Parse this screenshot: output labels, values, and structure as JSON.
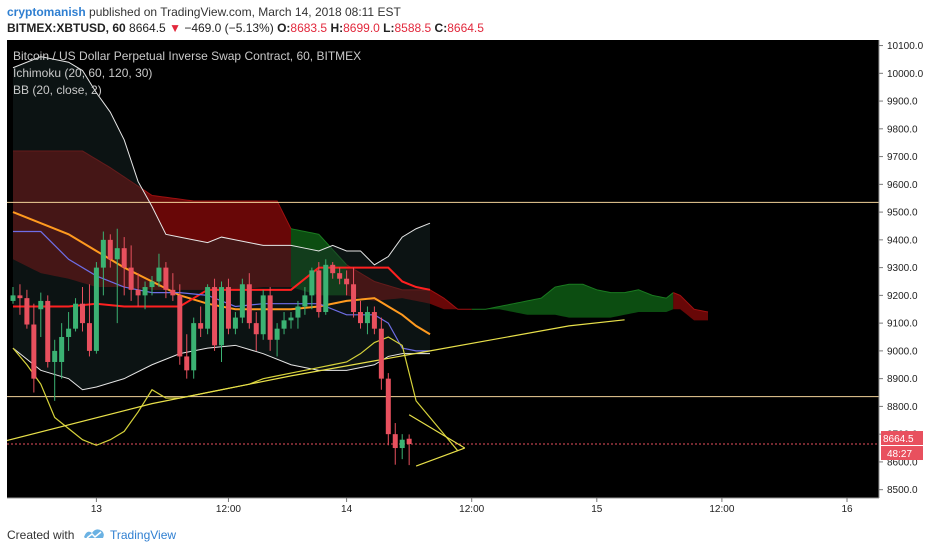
{
  "header": {
    "author": "cryptomanish",
    "published_text": "published on TradingView.com, March 14, 2018 08:11 EST",
    "symbol": "BITMEX:XBTUSD, 60",
    "last": "8664.5",
    "change_arrow": "▼",
    "change": "−469.0 (−5.13%)",
    "o_label": "O:",
    "o": "8683.5",
    "h_label": "H:",
    "h": "8699.0",
    "l_label": "L:",
    "l": "8588.5",
    "c_label": "C:",
    "c": "8664.5"
  },
  "legend": {
    "title": "Bitcoin / US Dollar Perpetual Inverse Swap Contract, 60, BITMEX",
    "ichimoku": "Ichimoku (20, 60, 120, 30)",
    "bb": "BB (20, close, 2)"
  },
  "price_tag": {
    "price": "8664.5",
    "countdown": "48:27"
  },
  "footer": {
    "created_with": "Created with",
    "brand": "TradingView"
  },
  "colors": {
    "background": "#000000",
    "up": "#3bb273",
    "down": "#e8505e",
    "axis_bg": "#ffffff",
    "tenkan": "#ff2020",
    "kijun_bb_basis": "#ff9a1f",
    "bb_bands": "#e6e6e6",
    "chikou": "#d6d23a",
    "trendline": "#e8e04a",
    "horizontal": "#f2d29a",
    "cloud_bear": "#8b0a0a",
    "cloud_bull": "#0e5a14",
    "base_line": "#6e6ee6"
  },
  "chart_data": {
    "type": "candlestick",
    "title": "Bitcoin / US Dollar Perpetual Inverse Swap Contract, 60, BITMEX",
    "y_ticks": [
      "8500.0",
      "8600.0",
      "8700.0",
      "8800.0",
      "8900.0",
      "9000.0",
      "9100.0",
      "9200.0",
      "9300.0",
      "9400.0",
      "9500.0",
      "9600.0",
      "9700.0",
      "9800.0",
      "9900.0",
      "10000.0",
      "10100.0"
    ],
    "ylim": [
      8470,
      10120
    ],
    "x_ticks": [
      {
        "label": "13",
        "i": 12
      },
      {
        "label": "12:00",
        "i": 31
      },
      {
        "label": "14",
        "i": 48
      },
      {
        "label": "12:00",
        "i": 66
      },
      {
        "label": "15",
        "i": 84
      },
      {
        "label": "12:00",
        "i": 102
      },
      {
        "label": "16",
        "i": 120
      }
    ],
    "xlim": [
      0,
      125
    ],
    "candles": [
      [
        9180,
        9230,
        9170,
        9200
      ],
      [
        9200,
        9240,
        9130,
        9190
      ],
      [
        9190,
        9220,
        9080,
        9095
      ],
      [
        9095,
        9170,
        8850,
        8900
      ],
      [
        9150,
        9210,
        9050,
        9180
      ],
      [
        9180,
        9200,
        8940,
        8960
      ],
      [
        8960,
        9040,
        8820,
        9000
      ],
      [
        8960,
        9100,
        8900,
        9050
      ],
      [
        9050,
        9140,
        9000,
        9080
      ],
      [
        9080,
        9190,
        9070,
        9170
      ],
      [
        9170,
        9230,
        9070,
        9100
      ],
      [
        9100,
        9240,
        8980,
        9000
      ],
      [
        9000,
        9320,
        8990,
        9300
      ],
      [
        9300,
        9430,
        9200,
        9400
      ],
      [
        9400,
        9420,
        9300,
        9330
      ],
      [
        9330,
        9440,
        9100,
        9370
      ],
      [
        9370,
        9410,
        9200,
        9300
      ],
      [
        9300,
        9380,
        9180,
        9220
      ],
      [
        9220,
        9280,
        9160,
        9200
      ],
      [
        9200,
        9250,
        9150,
        9230
      ],
      [
        9230,
        9270,
        9200,
        9250
      ],
      [
        9250,
        9350,
        9230,
        9300
      ],
      [
        9300,
        9320,
        9190,
        9220
      ],
      [
        9220,
        9280,
        9180,
        9200
      ],
      [
        9200,
        9240,
        8950,
        8980
      ],
      [
        8980,
        9060,
        8900,
        8930
      ],
      [
        8930,
        9120,
        8900,
        9100
      ],
      [
        9100,
        9160,
        9050,
        9080
      ],
      [
        9080,
        9240,
        9060,
        9230
      ],
      [
        9230,
        9260,
        9000,
        9020
      ],
      [
        9020,
        9250,
        8960,
        9230
      ],
      [
        9230,
        9260,
        9060,
        9080
      ],
      [
        9080,
        9140,
        9060,
        9120
      ],
      [
        9120,
        9260,
        9100,
        9240
      ],
      [
        9240,
        9280,
        9080,
        9100
      ],
      [
        9100,
        9140,
        9000,
        9060
      ],
      [
        9060,
        9220,
        9040,
        9200
      ],
      [
        9200,
        9230,
        9000,
        9040
      ],
      [
        9040,
        9100,
        8980,
        9080
      ],
      [
        9080,
        9140,
        9060,
        9110
      ],
      [
        9110,
        9140,
        9080,
        9120
      ],
      [
        9120,
        9180,
        9080,
        9160
      ],
      [
        9160,
        9230,
        9130,
        9200
      ],
      [
        9200,
        9300,
        9150,
        9290
      ],
      [
        9290,
        9320,
        9120,
        9140
      ],
      [
        9140,
        9330,
        9130,
        9310
      ],
      [
        9310,
        9320,
        9260,
        9280
      ],
      [
        9280,
        9300,
        9240,
        9260
      ],
      [
        9260,
        9290,
        9200,
        9240
      ],
      [
        9240,
        9300,
        9120,
        9140
      ],
      [
        9140,
        9180,
        9080,
        9100
      ],
      [
        9100,
        9160,
        9060,
        9140
      ],
      [
        9140,
        9160,
        9060,
        9080
      ],
      [
        9080,
        9120,
        8860,
        8900
      ],
      [
        8900,
        8920,
        8660,
        8700
      ],
      [
        8700,
        8740,
        8590,
        8650
      ],
      [
        8650,
        8700,
        8610,
        8680
      ],
      [
        8683.5,
        8699,
        8588.5,
        8664.5
      ]
    ],
    "candle_x": [
      0,
      1,
      2,
      3,
      4,
      5,
      6,
      7,
      8,
      9,
      10,
      11,
      12,
      13,
      14,
      15,
      16,
      17,
      18,
      19,
      20,
      21,
      22,
      23,
      24,
      25,
      26,
      27,
      28,
      29,
      30,
      31,
      32,
      33,
      34,
      35,
      36,
      37,
      38,
      39,
      40,
      41,
      42,
      43,
      44,
      45,
      46,
      47,
      48,
      49,
      50,
      51,
      52,
      53,
      54,
      55,
      56,
      57
    ],
    "horizontal_levels": [
      9535,
      8835
    ],
    "last_price_level": 8664.5,
    "series": [
      {
        "name": "bb_upper",
        "points": [
          [
            0,
            10020
          ],
          [
            4,
            10060
          ],
          [
            8,
            10040
          ],
          [
            10,
            10010
          ],
          [
            12,
            9930
          ],
          [
            14,
            9860
          ],
          [
            16,
            9760
          ],
          [
            18,
            9610
          ],
          [
            20,
            9520
          ],
          [
            22,
            9420
          ],
          [
            24,
            9410
          ],
          [
            26,
            9400
          ],
          [
            28,
            9390
          ],
          [
            30,
            9410
          ],
          [
            32,
            9400
          ],
          [
            34,
            9390
          ],
          [
            36,
            9380
          ],
          [
            38,
            9380
          ],
          [
            40,
            9380
          ],
          [
            42,
            9370
          ],
          [
            44,
            9360
          ],
          [
            46,
            9380
          ],
          [
            48,
            9360
          ],
          [
            50,
            9360
          ],
          [
            52,
            9310
          ],
          [
            54,
            9340
          ],
          [
            56,
            9410
          ],
          [
            58,
            9440
          ],
          [
            60,
            9460
          ]
        ]
      },
      {
        "name": "bb_basis",
        "points": [
          [
            0,
            9500
          ],
          [
            4,
            9460
          ],
          [
            8,
            9420
          ],
          [
            12,
            9360
          ],
          [
            16,
            9300
          ],
          [
            20,
            9250
          ],
          [
            24,
            9200
          ],
          [
            28,
            9170
          ],
          [
            32,
            9150
          ],
          [
            36,
            9150
          ],
          [
            40,
            9150
          ],
          [
            44,
            9160
          ],
          [
            48,
            9180
          ],
          [
            52,
            9190
          ],
          [
            54,
            9160
          ],
          [
            56,
            9130
          ],
          [
            58,
            9090
          ],
          [
            60,
            9060
          ]
        ]
      },
      {
        "name": "bb_lower",
        "points": [
          [
            0,
            9010
          ],
          [
            4,
            8930
          ],
          [
            8,
            8900
          ],
          [
            10,
            8860
          ],
          [
            12,
            8870
          ],
          [
            16,
            8900
          ],
          [
            20,
            8950
          ],
          [
            24,
            8990
          ],
          [
            28,
            9010
          ],
          [
            32,
            9020
          ],
          [
            36,
            8990
          ],
          [
            40,
            8950
          ],
          [
            44,
            8930
          ],
          [
            48,
            8930
          ],
          [
            52,
            8950
          ],
          [
            54,
            8980
          ],
          [
            56,
            8990
          ],
          [
            58,
            8990
          ],
          [
            60,
            8990
          ]
        ]
      },
      {
        "name": "tenkan",
        "points": [
          [
            0,
            9160
          ],
          [
            8,
            9160
          ],
          [
            12,
            9170
          ],
          [
            16,
            9160
          ],
          [
            20,
            9160
          ],
          [
            24,
            9160
          ],
          [
            28,
            9220
          ],
          [
            32,
            9220
          ],
          [
            36,
            9220
          ],
          [
            40,
            9220
          ],
          [
            44,
            9300
          ],
          [
            48,
            9300
          ],
          [
            52,
            9300
          ],
          [
            54,
            9300
          ],
          [
            56,
            9250
          ],
          [
            58,
            9230
          ],
          [
            60,
            9220
          ]
        ]
      },
      {
        "name": "kijun",
        "points": [
          [
            0,
            9430
          ],
          [
            4,
            9430
          ],
          [
            8,
            9330
          ],
          [
            12,
            9270
          ],
          [
            16,
            9230
          ],
          [
            20,
            9210
          ],
          [
            24,
            9210
          ],
          [
            28,
            9200
          ],
          [
            32,
            9160
          ],
          [
            36,
            9170
          ],
          [
            40,
            9170
          ],
          [
            44,
            9170
          ],
          [
            48,
            9130
          ],
          [
            52,
            9130
          ],
          [
            54,
            9100
          ],
          [
            56,
            9010
          ],
          [
            58,
            9000
          ],
          [
            60,
            9000
          ]
        ]
      },
      {
        "name": "chikou",
        "points": [
          [
            0,
            9010
          ],
          [
            2,
            8950
          ],
          [
            4,
            8880
          ],
          [
            6,
            8760
          ],
          [
            8,
            8720
          ],
          [
            10,
            8680
          ],
          [
            12,
            8660
          ],
          [
            14,
            8680
          ],
          [
            16,
            8710
          ],
          [
            18,
            8780
          ],
          [
            20,
            8860
          ],
          [
            22,
            8830
          ],
          [
            24,
            8830
          ],
          [
            26,
            8840
          ],
          [
            28,
            8850
          ],
          [
            30,
            8860
          ],
          [
            32,
            8870
          ],
          [
            34,
            8880
          ],
          [
            36,
            8900
          ],
          [
            38,
            8910
          ],
          [
            40,
            8920
          ],
          [
            42,
            8930
          ],
          [
            44,
            8940
          ],
          [
            46,
            8950
          ],
          [
            48,
            8960
          ],
          [
            50,
            8990
          ],
          [
            52,
            9030
          ],
          [
            54,
            9050
          ],
          [
            56,
            9020
          ],
          [
            58,
            8820
          ],
          [
            60,
            8760
          ],
          [
            62,
            8700
          ],
          [
            64,
            8640
          ]
        ]
      },
      {
        "name": "trend_line",
        "points": [
          [
            -2,
            8670
          ],
          [
            20,
            8810
          ],
          [
            40,
            8910
          ],
          [
            60,
            9000
          ],
          [
            80,
            9090
          ],
          [
            88,
            9112
          ]
        ]
      },
      {
        "name": "triangle_upper",
        "points": [
          [
            57,
            8770
          ],
          [
            65,
            8650
          ]
        ]
      },
      {
        "name": "triangle_lower",
        "points": [
          [
            58,
            8585
          ],
          [
            65,
            8650
          ]
        ]
      }
    ],
    "cloud": {
      "upper": [
        [
          0,
          9720
        ],
        [
          6,
          9720
        ],
        [
          10,
          9720
        ],
        [
          14,
          9660
        ],
        [
          20,
          9560
        ],
        [
          26,
          9540
        ],
        [
          32,
          9540
        ],
        [
          38,
          9540
        ],
        [
          40,
          9440
        ],
        [
          44,
          9420
        ],
        [
          48,
          9310
        ],
        [
          52,
          9250
        ],
        [
          56,
          9220
        ],
        [
          60,
          9220
        ],
        [
          62,
          9190
        ],
        [
          64,
          9150
        ],
        [
          66,
          9150
        ],
        [
          68,
          9150
        ],
        [
          70,
          9160
        ],
        [
          72,
          9170
        ],
        [
          74,
          9180
        ],
        [
          76,
          9190
        ],
        [
          78,
          9230
        ],
        [
          80,
          9240
        ],
        [
          82,
          9240
        ],
        [
          84,
          9220
        ],
        [
          86,
          9210
        ],
        [
          88,
          9210
        ],
        [
          90,
          9220
        ],
        [
          92,
          9200
        ],
        [
          94,
          9190
        ],
        [
          95,
          9210
        ],
        [
          96,
          9200
        ],
        [
          98,
          9150
        ],
        [
          100,
          9140
        ]
      ],
      "lower": [
        [
          0,
          9330
        ],
        [
          4,
          9280
        ],
        [
          8,
          9260
        ],
        [
          12,
          9230
        ],
        [
          16,
          9230
        ],
        [
          20,
          9220
        ],
        [
          24,
          9220
        ],
        [
          28,
          9220
        ],
        [
          32,
          9220
        ],
        [
          36,
          9230
        ],
        [
          40,
          9230
        ],
        [
          44,
          9200
        ],
        [
          48,
          9200
        ],
        [
          52,
          9180
        ],
        [
          56,
          9190
        ],
        [
          60,
          9170
        ],
        [
          62,
          9150
        ],
        [
          64,
          9150
        ],
        [
          66,
          9150
        ],
        [
          68,
          9150
        ],
        [
          70,
          9150
        ],
        [
          72,
          9140
        ],
        [
          74,
          9130
        ],
        [
          76,
          9130
        ],
        [
          78,
          9130
        ],
        [
          80,
          9120
        ],
        [
          82,
          9120
        ],
        [
          84,
          9120
        ],
        [
          86,
          9120
        ],
        [
          88,
          9130
        ],
        [
          90,
          9140
        ],
        [
          92,
          9140
        ],
        [
          94,
          9140
        ],
        [
          95,
          9150
        ],
        [
          96,
          9150
        ],
        [
          98,
          9110
        ],
        [
          100,
          9110
        ]
      ],
      "bull_ranges": [
        [
          40,
          48
        ],
        [
          66,
          95
        ]
      ]
    }
  }
}
